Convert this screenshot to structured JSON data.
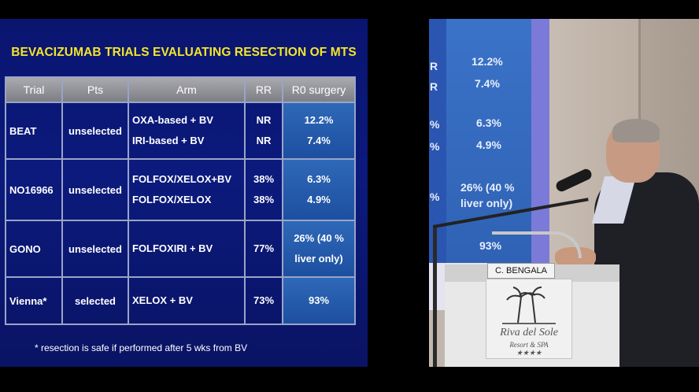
{
  "slide": {
    "title": "BEVACIZUMAB TRIALS EVALUATING RESECTION OF MTS",
    "headers": [
      "Trial",
      "Pts",
      "Arm",
      "RR",
      "R0 surgery"
    ],
    "rows": [
      {
        "trial": "BEAT",
        "pts": "unselected",
        "arm": [
          "OXA-based + BV",
          "IRI-based + BV"
        ],
        "rr": [
          "NR",
          "NR"
        ],
        "r0": [
          "12.2%",
          "7.4%"
        ]
      },
      {
        "trial": "NO16966",
        "pts": "unselected",
        "arm": [
          "FOLFOX/XELOX+BV",
          "FOLFOX/XELOX"
        ],
        "rr": [
          "38%",
          "38%"
        ],
        "r0": [
          "6.3%",
          "4.9%"
        ]
      },
      {
        "trial": "GONO",
        "pts": "unselected",
        "arm": [
          "FOLFOXIRI + BV"
        ],
        "rr": [
          "77%"
        ],
        "r0": [
          "26% (40 %",
          "liver only)"
        ]
      },
      {
        "trial": "Vienna*",
        "pts": "selected",
        "arm": [
          "XELOX + BV"
        ],
        "rr": [
          "73%"
        ],
        "r0": [
          "93%"
        ]
      }
    ],
    "footnote": "* resection is safe if performed after 5 wks from BV"
  },
  "scene": {
    "screen_values": [
      "12.2%",
      "7.4%",
      "6.3%",
      "4.9%",
      "26% (40 %",
      "liver only)",
      "93%"
    ],
    "screen_left": [
      "R",
      "R",
      "%",
      "%",
      "%"
    ],
    "nameplate": "C. BENGALA",
    "logo_line1": "Riva del Sole",
    "logo_line2": "Resort & SPA",
    "logo_stars": "★★★★"
  },
  "colors": {
    "slide_bg": "#0b1a7c",
    "title": "#f4e52a",
    "header_bg": "#8f9097",
    "r0_cell": "#2a5fb0"
  }
}
